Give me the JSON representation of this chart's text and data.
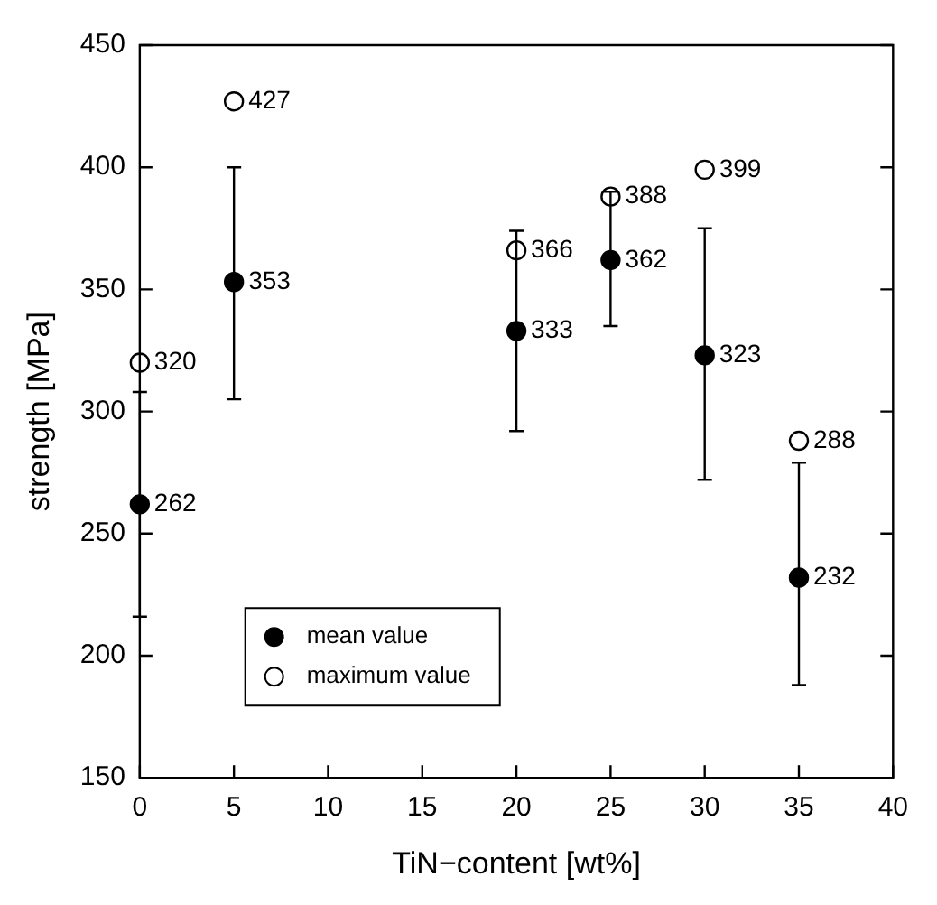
{
  "chart_data": {
    "type": "scatter",
    "xlabel": "TiN−content [wt%]",
    "ylabel": "strength [MPa]",
    "xlim": [
      0,
      40
    ],
    "xticks": [
      0,
      5,
      10,
      15,
      20,
      25,
      30,
      35,
      40
    ],
    "ylim": [
      150,
      450
    ],
    "yticks": [
      150,
      200,
      250,
      300,
      350,
      400,
      450
    ],
    "grid": false,
    "legend": "bottom left",
    "marker": "circle",
    "data_labels": true,
    "series": [
      {
        "name": "mean value",
        "color": "#000000",
        "x": [
          0,
          5,
          20,
          25,
          30,
          35
        ],
        "values": [
          262,
          353,
          333,
          362,
          323,
          232
        ],
        "errors": [
          [
            216,
            308
          ],
          [
            305,
            400
          ],
          [
            292,
            374
          ],
          [
            335,
            390
          ],
          [
            272,
            375
          ],
          [
            188,
            279
          ]
        ]
      },
      {
        "name": "maximum value",
        "color": "#000000",
        "x": [
          0,
          5,
          20,
          25,
          30,
          35
        ],
        "values": [
          320,
          427,
          366,
          388,
          399,
          288
        ]
      }
    ]
  }
}
